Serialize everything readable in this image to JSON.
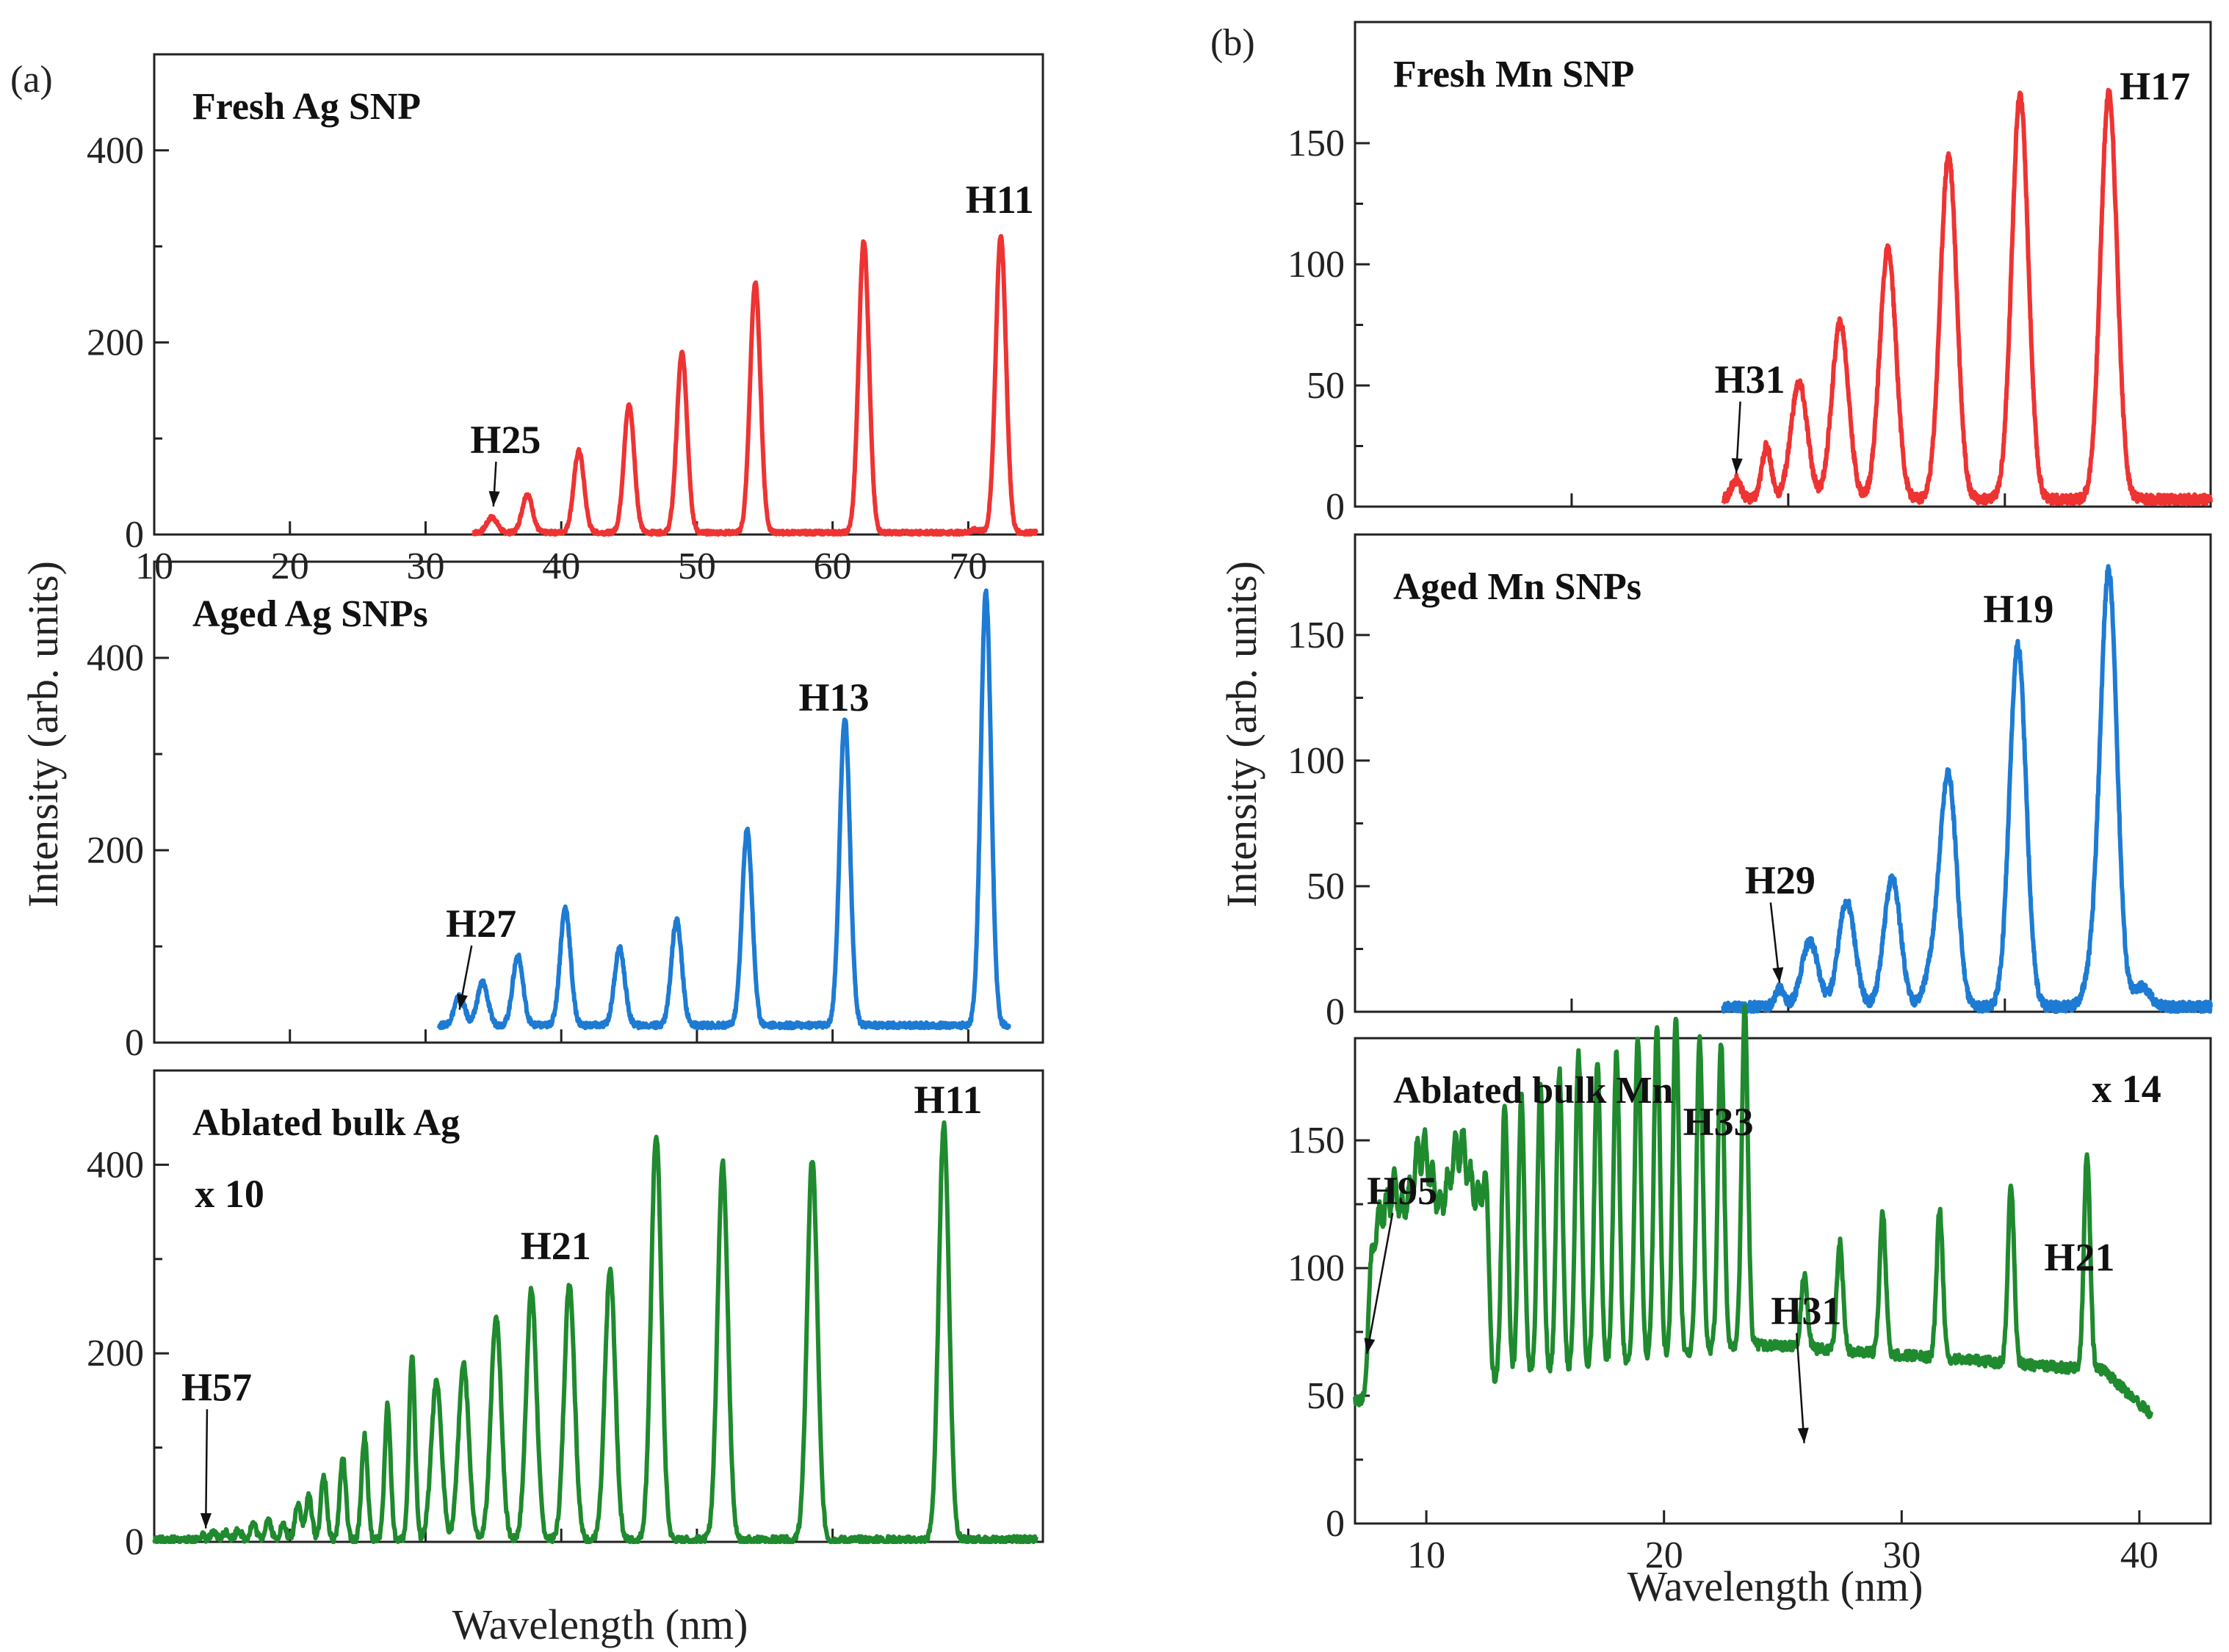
{
  "colors": {
    "red": "#ee3333",
    "blue": "#1e7bd3",
    "green": "#1f8a2e"
  },
  "chart_data": [
    {
      "type": "line",
      "panel": "(a)",
      "title": "Fresh Ag SNP",
      "ylabel": "Intensity (arb. units)",
      "xlabel": "Wavelength (nm)",
      "xlim": [
        10,
        75.5
      ],
      "ylim": [
        0,
        500
      ],
      "xticks": [
        10,
        20,
        30,
        40,
        50,
        60,
        70
      ],
      "yticks": [
        0,
        200,
        400
      ],
      "color": "red",
      "baseline": 2,
      "noise": 2,
      "x_range": [
        33.5,
        75
      ],
      "peaks": [
        [
          34.9,
          16
        ],
        [
          37.5,
          40
        ],
        [
          41.3,
          85
        ],
        [
          45.0,
          133
        ],
        [
          48.9,
          187
        ],
        [
          54.3,
          260
        ],
        [
          62.3,
          304
        ],
        [
          70.6,
          3
        ],
        [
          72.4,
          309
        ]
      ],
      "annotations": [
        {
          "text": "H25",
          "tx": 33.3,
          "ty": 85,
          "ax": 35.0,
          "ay": 20
        },
        {
          "text": "H11",
          "tx": 69.8,
          "ty": 335
        }
      ]
    },
    {
      "type": "line",
      "title": "Aged Ag SNPs",
      "ylabel": "Intensity (arb. units)",
      "xlim": [
        10,
        75.5
      ],
      "ylim": [
        0,
        500
      ],
      "yticks": [
        0,
        200,
        400
      ],
      "color": "blue",
      "baseline": 18,
      "noise": 3,
      "x_range": [
        31,
        73
      ],
      "peaks": [
        [
          32.5,
          30
        ],
        [
          34.2,
          45
        ],
        [
          36.8,
          72
        ],
        [
          40.3,
          122
        ],
        [
          44.3,
          80
        ],
        [
          48.5,
          110
        ],
        [
          53.7,
          203
        ],
        [
          60.9,
          320
        ],
        [
          71.3,
          450
        ]
      ],
      "annotations": [
        {
          "text": "H27",
          "tx": 31.5,
          "ty": 110,
          "ax": 32.5,
          "ay": 25
        },
        {
          "text": "H13",
          "tx": 57.5,
          "ty": 345
        }
      ]
    },
    {
      "type": "line",
      "title": "Ablated bulk Ag",
      "ylabel": "Intensity (arb. units)",
      "xlim": [
        10,
        75.5
      ],
      "ylim": [
        0,
        500
      ],
      "yticks": [
        0,
        200,
        400
      ],
      "color": "green",
      "baseline": 2,
      "noise": 4,
      "x_range": [
        10,
        75
      ],
      "peaks": [
        [
          13.5,
          5
        ],
        [
          14.4,
          7
        ],
        [
          15.3,
          9
        ],
        [
          16.2,
          11
        ],
        [
          17.3,
          18
        ],
        [
          18.4,
          22
        ],
        [
          19.5,
          16
        ],
        [
          20.6,
          40
        ],
        [
          21.4,
          47
        ],
        [
          22.5,
          68
        ],
        [
          23.9,
          87
        ],
        [
          25.5,
          110
        ],
        [
          27.2,
          143
        ],
        [
          29.0,
          197
        ],
        [
          30.8,
          167
        ],
        [
          32.8,
          186
        ],
        [
          35.2,
          237
        ],
        [
          37.8,
          265
        ],
        [
          40.6,
          273
        ],
        [
          43.6,
          286
        ],
        [
          47.0,
          430
        ],
        [
          51.9,
          400
        ],
        [
          58.5,
          403
        ],
        [
          68.2,
          440
        ]
      ],
      "annotations": [
        {
          "text": "H57",
          "tx": 12,
          "ty": 150,
          "ax": 13.8,
          "ay": 5
        },
        {
          "text": "H21",
          "tx": 37.0,
          "ty": 300
        },
        {
          "text": "H11",
          "tx": 66.0,
          "ty": 455
        },
        {
          "text": "x 10",
          "tx": 13.0,
          "ty": 355
        }
      ]
    },
    {
      "type": "line",
      "panel": "(b)",
      "title": "Fresh Mn SNP",
      "ylabel": "Intensity (arb. units)",
      "xlim": [
        10,
        49.5
      ],
      "ylim": [
        0,
        200
      ],
      "yticks": [
        0,
        50,
        100,
        150
      ],
      "color": "red",
      "baseline": 3,
      "noise": 2,
      "x_range": [
        27,
        49.5
      ],
      "peaks": [
        [
          27.6,
          8
        ],
        [
          29.0,
          22
        ],
        [
          30.5,
          48
        ],
        [
          32.4,
          73
        ],
        [
          34.6,
          103
        ],
        [
          37.4,
          142
        ],
        [
          40.7,
          167
        ],
        [
          44.8,
          168
        ]
      ],
      "annotations": [
        {
          "text": "H31",
          "tx": 26.6,
          "ty": 47,
          "ax": 27.6,
          "ay": 10
        },
        {
          "text": "H17",
          "tx": 45.3,
          "ty": 168
        }
      ]
    },
    {
      "type": "line",
      "title": "Aged Mn SNPs",
      "ylabel": "Intensity (arb. units)",
      "xlim": [
        10,
        49.5
      ],
      "ylim": [
        0,
        190
      ],
      "yticks": [
        0,
        50,
        100,
        150
      ],
      "color": "blue",
      "baseline": 2,
      "noise": 2,
      "x_range": [
        27,
        49.5
      ],
      "peaks": [
        [
          29.6,
          7
        ],
        [
          31.0,
          26
        ],
        [
          32.7,
          42
        ],
        [
          34.8,
          51
        ],
        [
          36.7,
          15
        ],
        [
          37.4,
          90
        ],
        [
          40.6,
          144
        ],
        [
          44.1,
          14
        ],
        [
          44.8,
          171
        ],
        [
          46.3,
          8
        ]
      ],
      "annotations": [
        {
          "text": "H29",
          "tx": 28.0,
          "ty": 47,
          "ax": 29.6,
          "ay": 8
        },
        {
          "text": "H19",
          "tx": 39.0,
          "ty": 155
        }
      ]
    },
    {
      "type": "line",
      "title": "Ablated bulk Mn",
      "xlabel": "Wavelength (nm)",
      "xlim": [
        7.0,
        43.0
      ],
      "ylim": [
        0,
        190
      ],
      "xticks": [
        10,
        20,
        30,
        40
      ],
      "yticks": [
        0,
        50,
        100,
        150
      ],
      "color": "green",
      "baseline": 45,
      "noise": 3,
      "x_range": [
        7.0,
        40.5
      ],
      "annotations": [
        {
          "text": "H95",
          "tx": 7.5,
          "ty": 125,
          "ax": 7.5,
          "ay": 63
        },
        {
          "text": "H33",
          "tx": 20.8,
          "ty": 152
        },
        {
          "text": "H31",
          "tx": 24.5,
          "ty": 78,
          "ax": 25.9,
          "ay": 28
        },
        {
          "text": "H21",
          "tx": 36.0,
          "ty": 99
        },
        {
          "text": "x 14",
          "tx": 38.0,
          "ty": 165
        }
      ]
    }
  ]
}
